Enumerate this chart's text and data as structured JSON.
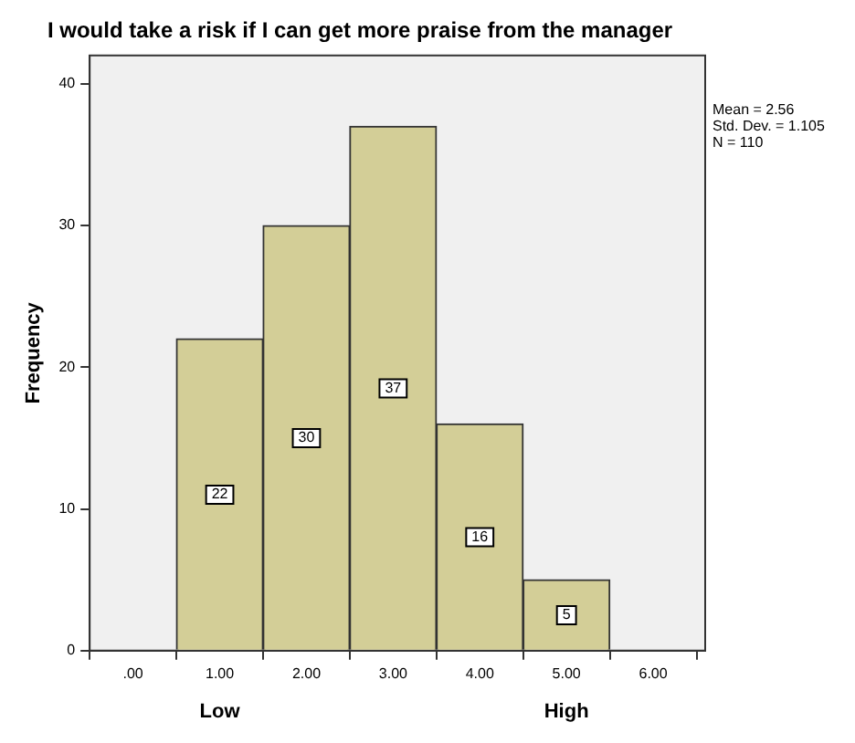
{
  "chart_data": {
    "type": "histogram",
    "title": "I would take a risk if I can get more praise from the manager",
    "ylabel": "Frequency",
    "bins": [
      0.5,
      1.5,
      2.5,
      3.5,
      4.5,
      5.5
    ],
    "values": [
      22,
      30,
      37,
      16,
      5
    ],
    "color": "#d3ce97",
    "xlim": [
      -0.5,
      6.6
    ],
    "xticks": [
      {
        "value": 0,
        "label": ".00"
      },
      {
        "value": 1,
        "label": "1.00"
      },
      {
        "value": 2,
        "label": "2.00"
      },
      {
        "value": 3,
        "label": "3.00"
      },
      {
        "value": 4,
        "label": "4.00"
      },
      {
        "value": 5,
        "label": "5.00"
      },
      {
        "value": 6,
        "label": "6.00"
      }
    ],
    "ylim": [
      0,
      42
    ],
    "yticks": [
      0,
      10,
      20,
      30,
      40
    ],
    "grid": false,
    "data_labels": true,
    "annotations": [
      "Mean = 2.56",
      "Std. Dev. = 1.105",
      "N = 110",
      "Low",
      "High"
    ]
  }
}
